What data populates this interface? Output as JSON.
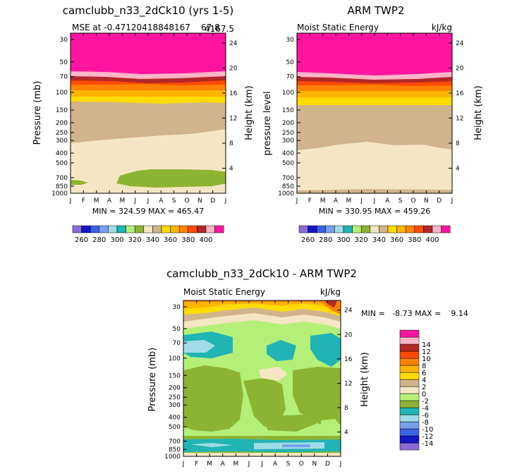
{
  "chart_data": [
    {
      "type": "heatmap",
      "title": "camclubb_n33_2dCk10 (yrs 1-5)",
      "subtitle_left": "MSE at -0.47120418848167",
      "subtitle_right": "67.8",
      "subtitle_overlap": "4167.5",
      "ylabel_left": "Pressure (mb)",
      "ylabel_right": "Height (km)",
      "units": "",
      "min_label": "MIN = 324.59  MAX = 465.47"
    },
    {
      "type": "heatmap",
      "title": "ARM TWP2",
      "subtitle_left": "Moist Static Energy",
      "units": "kJ/kg",
      "ylabel_left": "pressure level",
      "ylabel_right": "Height (km)",
      "min_label": "MIN = 330.95  MAX = 459.26"
    },
    {
      "type": "heatmap",
      "title": "camclubb_n33_2dCk10 - ARM TWP2",
      "subtitle_left": "Moist Static Energy",
      "units": "kJ/kg",
      "ylabel_left": "Pressure (mb)",
      "ylabel_right": "Height (km)",
      "min_label": "MIN =   -8.73 MAX =    9.14"
    }
  ],
  "axes": {
    "pressure_ticks": [
      "30",
      "50",
      "70",
      "100",
      "150",
      "200",
      "250",
      "300",
      "400",
      "500",
      "700",
      "850",
      "1000"
    ],
    "pressure_values": [
      30,
      50,
      70,
      100,
      150,
      200,
      250,
      300,
      400,
      500,
      700,
      850,
      1000
    ],
    "height_ticks": [
      "24",
      "20",
      "16",
      "12",
      "8",
      "4"
    ],
    "height_values": [
      24,
      20,
      16,
      12,
      8,
      4
    ],
    "months": [
      "J",
      "F",
      "M",
      "A",
      "M",
      "J",
      "J",
      "A",
      "S",
      "O",
      "N",
      "D",
      "J"
    ]
  },
  "colorbar_top": {
    "colors": [
      "#8C6BD6",
      "#1414C8",
      "#3C64E6",
      "#78A0F0",
      "#A0DCE6",
      "#20B4B4",
      "#B4F078",
      "#8CB432",
      "#F5E6C3",
      "#D2B48C",
      "#FFDC00",
      "#FFB400",
      "#FF8200",
      "#FF4B00",
      "#B42828",
      "#FFB4C8",
      "#FF14A0"
    ],
    "labels": [
      "260",
      "280",
      "300",
      "320",
      "340",
      "360",
      "380",
      "400"
    ]
  },
  "colorbar_diff": {
    "colors": [
      "#8C6BD6",
      "#1414C8",
      "#3C64E6",
      "#78A0F0",
      "#A0DCE6",
      "#20B4B4",
      "#8CB432",
      "#B4F078",
      "#F5E6C3",
      "#D2B48C",
      "#FFDC00",
      "#FFB400",
      "#FF8200",
      "#FF4B00",
      "#B42828",
      "#FFB4C8",
      "#FF14A0"
    ],
    "labels": [
      "-14",
      "-12",
      "-10",
      "-8",
      "-6",
      "-4",
      "-2",
      "0",
      "2",
      "4",
      "6",
      "8",
      "10",
      "12",
      "14"
    ]
  }
}
